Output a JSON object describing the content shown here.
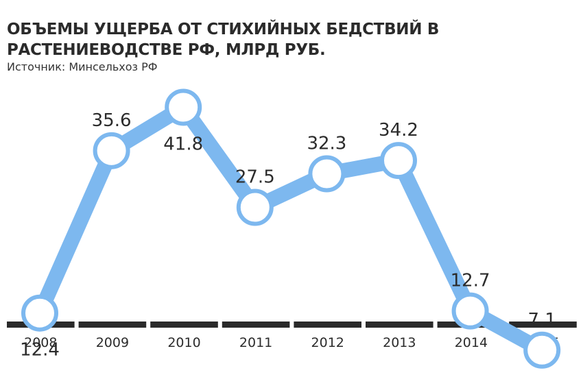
{
  "title_line1": "ОБЪЕМЫ УЩЕРБА ОТ СТИХИЙНЫХ БЕДСТВИЙ В",
  "title_line2": "РАСТЕНИЕВОДСТВЕ РФ, МЛРД РУБ.",
  "source": "Источник: Минсельхоз РФ",
  "colors": {
    "line": "#7db8ef",
    "marker_fill": "#ffffff",
    "axis_bar": "#2a2a2a",
    "text": "#2b2b2b"
  },
  "chart_data": {
    "type": "line",
    "categories": [
      "2008",
      "2009",
      "2010",
      "2011",
      "2012",
      "2013",
      "2014",
      "2015"
    ],
    "values": [
      12.4,
      35.6,
      41.8,
      27.5,
      32.3,
      34.2,
      12.7,
      7.1
    ],
    "labels": [
      "12.4",
      "35.6",
      "41.8",
      "27.5",
      "32.3",
      "34.2",
      "12.7",
      "7.1"
    ],
    "label_position": [
      "below",
      "above",
      "below",
      "above",
      "above",
      "above",
      "above",
      "above"
    ],
    "ylim": [
      0,
      45
    ]
  }
}
